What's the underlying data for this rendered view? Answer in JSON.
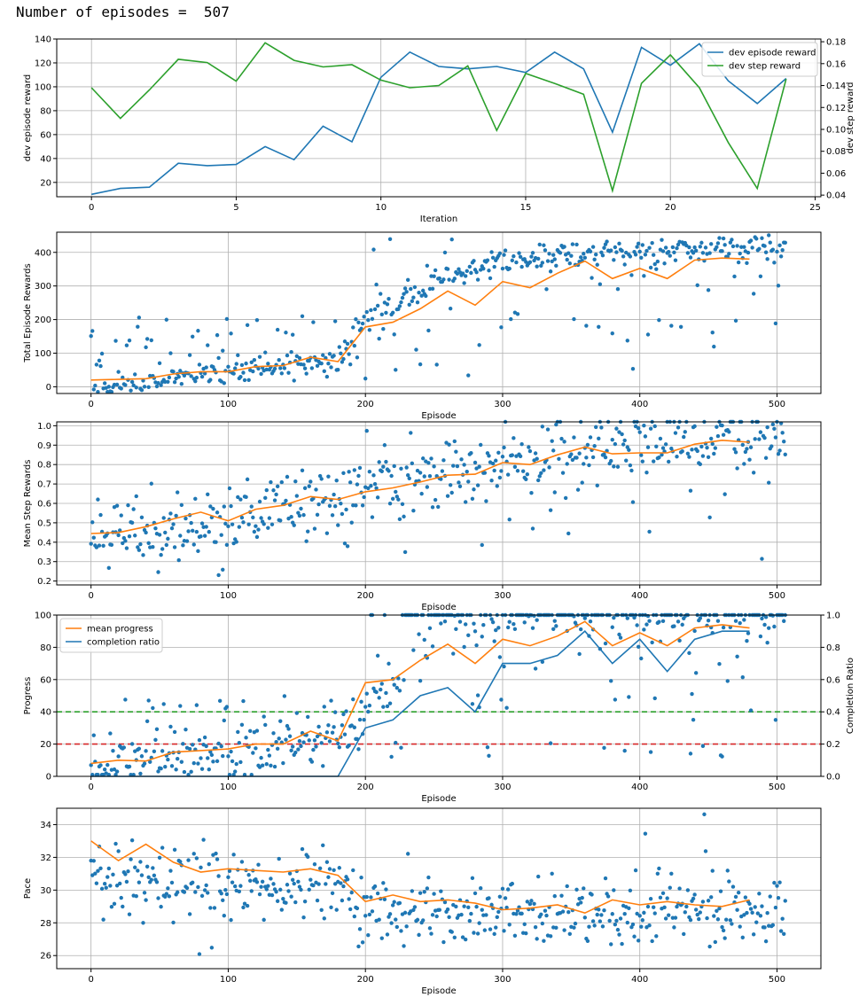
{
  "header": {
    "label": "Number of episodes =",
    "value": "507"
  },
  "colors": {
    "blue": "#1f77b4",
    "orange": "#ff7f0e",
    "green": "#2ca02c",
    "red": "#d62728",
    "dotblue": "#1f77b4"
  },
  "chart_data": [
    {
      "id": "dev",
      "type": "line",
      "xlabel": "Iteration",
      "ylabel": "dev episode reward",
      "y2label": "dev step reward",
      "xlim": [
        -1.2,
        25.2
      ],
      "ylim": [
        8,
        140
      ],
      "y2lim": [
        0.0385,
        0.1825
      ],
      "xticks": [
        "0",
        "5",
        "10",
        "15",
        "20",
        "25"
      ],
      "yticks": [
        "20",
        "40",
        "60",
        "80",
        "100",
        "120",
        "140"
      ],
      "y2ticks": [
        "0.04",
        "0.06",
        "0.08",
        "0.10",
        "0.12",
        "0.14",
        "0.16",
        "0.18"
      ],
      "legend": {
        "position": "top-right",
        "entries": [
          "dev episode reward",
          "dev step reward"
        ]
      },
      "series": [
        {
          "name": "dev episode reward",
          "axis": "left",
          "color": "blue",
          "x": [
            0,
            1,
            2,
            3,
            4,
            5,
            6,
            7,
            8,
            9,
            10,
            11,
            12,
            13,
            14,
            15,
            16,
            17,
            18,
            19,
            20,
            21,
            22,
            23,
            24
          ],
          "values": [
            10,
            15,
            16,
            36,
            34,
            35,
            50,
            39,
            67,
            54,
            108,
            129,
            117,
            115,
            117,
            112,
            129,
            115,
            62,
            133,
            118,
            136,
            105,
            86,
            107
          ]
        },
        {
          "name": "dev step reward",
          "axis": "right",
          "color": "green",
          "x": [
            0,
            1,
            2,
            3,
            4,
            5,
            6,
            7,
            8,
            9,
            10,
            11,
            12,
            13,
            14,
            15,
            16,
            17,
            18,
            19,
            20,
            21,
            22,
            23,
            24
          ],
          "values": [
            0.138,
            0.11,
            0.136,
            0.164,
            0.161,
            0.144,
            0.179,
            0.163,
            0.157,
            0.159,
            0.145,
            0.138,
            0.14,
            0.158,
            0.099,
            0.151,
            0.142,
            0.132,
            0.044,
            0.142,
            0.168,
            0.138,
            0.088,
            0.046,
            0.146
          ]
        }
      ]
    },
    {
      "id": "total",
      "type": "scatter",
      "xlabel": "Episode",
      "ylabel": "Total Episode Rewards",
      "xlim": [
        -25,
        532
      ],
      "ylim": [
        -20,
        460
      ],
      "xticks": [
        "0",
        "100",
        "200",
        "300",
        "400",
        "500"
      ],
      "yticks": [
        "0",
        "100",
        "200",
        "300",
        "400"
      ],
      "scatter_trend": {
        "start": 1,
        "end": 95,
        "noise": 18,
        "outlier_rate": 0.22,
        "hi": 440,
        "seed": 11,
        "knots": [
          [
            0,
            1
          ],
          [
            100,
            40
          ],
          [
            180,
            80
          ],
          [
            200,
            200
          ],
          [
            260,
            330
          ],
          [
            300,
            380
          ],
          [
            400,
            405
          ],
          [
            506,
            410
          ]
        ]
      },
      "trend_line": {
        "name": "mean",
        "color": "orange",
        "x": [
          0,
          20,
          40,
          60,
          80,
          100,
          120,
          140,
          160,
          180,
          200,
          220,
          240,
          260,
          280,
          300,
          320,
          340,
          360,
          380,
          400,
          420,
          440,
          460,
          480
        ],
        "values": [
          20,
          22,
          24,
          38,
          45,
          45,
          60,
          63,
          88,
          75,
          178,
          192,
          232,
          285,
          243,
          313,
          295,
          338,
          374,
          322,
          352,
          322,
          377,
          383,
          380
        ]
      }
    },
    {
      "id": "mean",
      "type": "scatter",
      "xlabel": "Episode",
      "ylabel": "Mean Step Rewards",
      "xlim": [
        -25,
        532
      ],
      "ylim": [
        0.18,
        1.02
      ],
      "xticks": [
        "0",
        "100",
        "200",
        "300",
        "400",
        "500"
      ],
      "yticks": [
        "0.2",
        "0.3",
        "0.4",
        "0.5",
        "0.6",
        "0.7",
        "0.8",
        "0.9",
        "1.0"
      ],
      "scatter_trend": {
        "start": 0.45,
        "end": 0.96,
        "noise": 0.09,
        "outlier_rate": 0.08,
        "hi": 0.99,
        "seed": 23,
        "knots": [
          [
            0,
            0.45
          ],
          [
            100,
            0.52
          ],
          [
            200,
            0.67
          ],
          [
            300,
            0.82
          ],
          [
            400,
            0.9
          ],
          [
            506,
            0.95
          ]
        ]
      },
      "trend_line": {
        "name": "mean",
        "color": "orange",
        "x": [
          0,
          20,
          40,
          60,
          80,
          100,
          120,
          140,
          160,
          180,
          200,
          220,
          240,
          260,
          280,
          300,
          320,
          340,
          360,
          380,
          400,
          420,
          440,
          460,
          480
        ],
        "values": [
          0.445,
          0.45,
          0.48,
          0.52,
          0.555,
          0.51,
          0.57,
          0.59,
          0.635,
          0.62,
          0.66,
          0.68,
          0.71,
          0.745,
          0.75,
          0.81,
          0.8,
          0.85,
          0.89,
          0.855,
          0.86,
          0.86,
          0.905,
          0.925,
          0.915
        ]
      }
    },
    {
      "id": "progress",
      "type": "scatter",
      "xlabel": "Episode",
      "ylabel": "Progress",
      "y2label": "Completion Ratio",
      "xlim": [
        -25,
        532
      ],
      "ylim": [
        0,
        100
      ],
      "y2lim": [
        0,
        1
      ],
      "xticks": [
        "0",
        "100",
        "200",
        "300",
        "400",
        "500"
      ],
      "yticks": [
        "0",
        "20",
        "40",
        "60",
        "80",
        "100"
      ],
      "y2ticks": [
        "0.0",
        "0.2",
        "0.4",
        "0.6",
        "0.8",
        "1.0"
      ],
      "legend": {
        "position": "top-left",
        "entries": [
          "mean progress",
          "completion ratio"
        ]
      },
      "hlines": [
        {
          "value": 40,
          "color": "green"
        },
        {
          "value": 20,
          "color": "red"
        }
      ],
      "scatter_trend": {
        "start": 10,
        "end": 100,
        "noise": 8,
        "outlier_rate": 0.3,
        "hi": 100,
        "seed": 37,
        "knots": [
          [
            0,
            6
          ],
          [
            100,
            14
          ],
          [
            180,
            22
          ],
          [
            200,
            40
          ],
          [
            260,
            90
          ],
          [
            300,
            100
          ],
          [
            506,
            100
          ]
        ]
      },
      "series": [
        {
          "name": "mean progress",
          "axis": "left",
          "color": "orange",
          "x": [
            0,
            20,
            40,
            60,
            80,
            100,
            120,
            140,
            160,
            180,
            200,
            220,
            240,
            260,
            280,
            300,
            320,
            340,
            360,
            380,
            400,
            420,
            440,
            460,
            480
          ],
          "values": [
            8,
            10,
            9.5,
            15,
            16,
            17,
            20,
            20,
            28,
            22,
            58,
            60,
            72,
            82,
            70,
            85,
            81,
            87,
            96,
            81,
            89,
            81,
            92,
            94,
            92
          ]
        },
        {
          "name": "completion ratio",
          "axis": "right",
          "color": "blue",
          "x": [
            0,
            20,
            40,
            60,
            80,
            100,
            120,
            140,
            160,
            180,
            200,
            220,
            240,
            260,
            280,
            300,
            320,
            340,
            360,
            380,
            400,
            420,
            440,
            460,
            480
          ],
          "values": [
            0,
            0,
            0,
            0,
            0,
            0,
            0,
            0,
            0,
            0,
            0.3,
            0.35,
            0.5,
            0.55,
            0.4,
            0.7,
            0.7,
            0.75,
            0.9,
            0.7,
            0.85,
            0.65,
            0.85,
            0.9,
            0.9
          ]
        }
      ]
    },
    {
      "id": "pace",
      "type": "scatter",
      "xlabel": "Episode",
      "ylabel": "Pace",
      "xlim": [
        -25,
        532
      ],
      "ylim": [
        25.2,
        35
      ],
      "xticks": [
        "0",
        "100",
        "200",
        "300",
        "400",
        "500"
      ],
      "yticks": [
        "26",
        "28",
        "30",
        "32",
        "34"
      ],
      "scatter_trend": {
        "start": 31,
        "end": 28.7,
        "noise": 1.0,
        "outlier_rate": 0.05,
        "hi": 34.8,
        "seed": 51,
        "knots": [
          [
            0,
            31
          ],
          [
            100,
            30.5
          ],
          [
            180,
            30
          ],
          [
            200,
            28.8
          ],
          [
            300,
            28.6
          ],
          [
            506,
            28.7
          ]
        ]
      },
      "trend_line": {
        "name": "mean",
        "color": "orange",
        "x": [
          0,
          20,
          40,
          60,
          80,
          100,
          120,
          140,
          160,
          180,
          200,
          220,
          240,
          260,
          280,
          300,
          320,
          340,
          360,
          380,
          400,
          420,
          440,
          460,
          480
        ],
        "values": [
          33,
          31.8,
          32.8,
          31.7,
          31.1,
          31.3,
          31.2,
          31.1,
          31.3,
          30.9,
          29.3,
          29.7,
          29.3,
          29.4,
          29.2,
          28.8,
          28.9,
          29.1,
          28.6,
          29.4,
          29.1,
          29.3,
          29.1,
          29.0,
          29.4
        ]
      }
    }
  ]
}
